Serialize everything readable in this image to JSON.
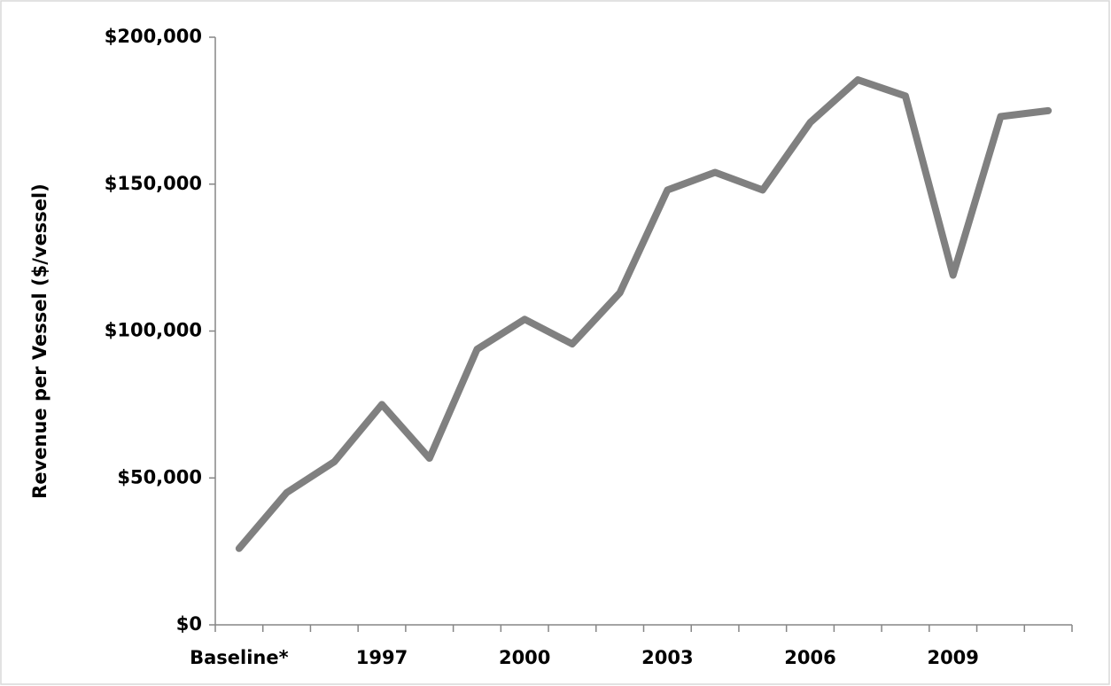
{
  "chart_data": {
    "type": "line",
    "y_label": "Revenue per Vessel ($/vessel)",
    "categories": [
      "Baseline*",
      null,
      null,
      "1997",
      null,
      null,
      "2000",
      null,
      null,
      "2003",
      null,
      null,
      "2006",
      null,
      null,
      "2009",
      null,
      null
    ],
    "series": [
      {
        "color": "#808080",
        "values": [
          26000,
          45000,
          55500,
          75000,
          56700,
          93800,
          104000,
          95600,
          113000,
          148000,
          154000,
          148000,
          171000,
          185500,
          180000,
          119000,
          173000,
          175000
        ]
      }
    ],
    "ylim": [
      0,
      200000
    ],
    "yticks": [
      {
        "value": 0,
        "label": "$0"
      },
      {
        "value": 50000,
        "label": "$50,000"
      },
      {
        "value": 100000,
        "label": "$100,000"
      },
      {
        "value": 150000,
        "label": "$150,000"
      },
      {
        "value": 200000,
        "label": "$200,000"
      }
    ]
  }
}
